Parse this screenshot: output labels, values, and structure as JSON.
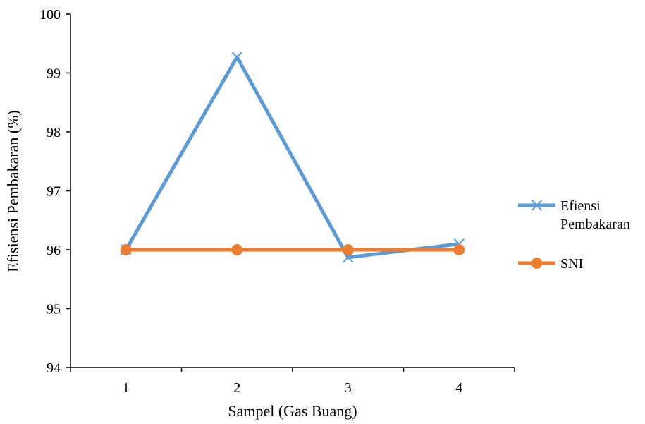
{
  "chart_data": {
    "type": "line",
    "title": "",
    "xlabel": "Sampel (Gas Buang)",
    "ylabel": "Efisiensi Pembakaran (%)",
    "categories": [
      "1",
      "2",
      "3",
      "4"
    ],
    "ylim": [
      94,
      100
    ],
    "yticks": [
      "94",
      "95",
      "96",
      "97",
      "98",
      "99",
      "100"
    ],
    "grid": false,
    "legend_position": "right",
    "series": [
      {
        "name": "Efiensi Pembakaran",
        "name_lines": [
          "Efiensi",
          "Pembakaran"
        ],
        "values": [
          96.0,
          99.27,
          95.87,
          96.1
        ],
        "color": "#5b9bd5",
        "marker": "x"
      },
      {
        "name": "SNI",
        "name_lines": [
          "SNI"
        ],
        "values": [
          96.0,
          96.0,
          96.0,
          96.0
        ],
        "color": "#ed7d31",
        "marker": "circle"
      }
    ]
  }
}
